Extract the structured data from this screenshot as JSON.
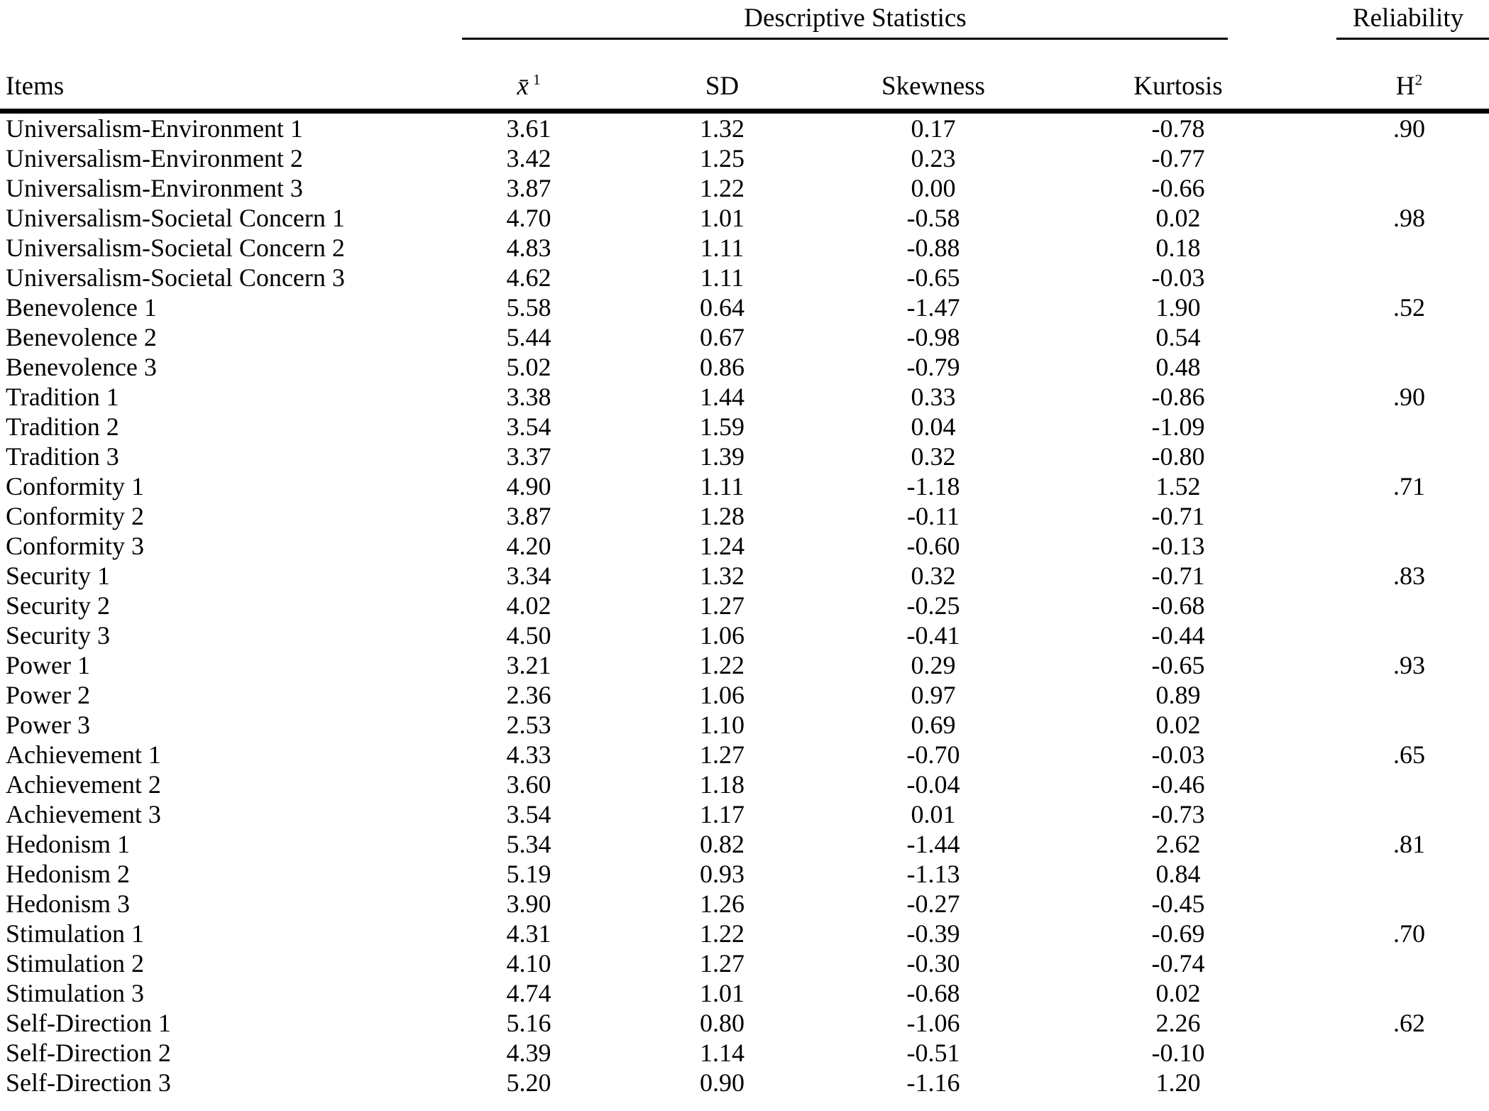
{
  "page": {
    "background": "#ffffff",
    "text_color": "#000000"
  },
  "table": {
    "group_headers": {
      "descriptive_statistics": "Descriptive Statistics",
      "reliability": "Reliability"
    },
    "columns": {
      "items": "Items",
      "mean_base": "x̄",
      "mean_sup": "1",
      "sd": "SD",
      "skewness": "Skewness",
      "kurtosis": "Kurtosis",
      "reliability_base": "H",
      "reliability_sup": "2"
    },
    "rows": [
      {
        "item": "Universalism-Environment 1",
        "mean": "3.61",
        "sd": "1.32",
        "skewness": "0.17",
        "kurtosis": "-0.78",
        "h2": ".90"
      },
      {
        "item": "Universalism-Environment 2",
        "mean": "3.42",
        "sd": "1.25",
        "skewness": "0.23",
        "kurtosis": "-0.77",
        "h2": ""
      },
      {
        "item": "Universalism-Environment 3",
        "mean": "3.87",
        "sd": "1.22",
        "skewness": "0.00",
        "kurtosis": "-0.66",
        "h2": ""
      },
      {
        "item": "Universalism-Societal Concern 1",
        "mean": "4.70",
        "sd": "1.01",
        "skewness": "-0.58",
        "kurtosis": "0.02",
        "h2": ".98"
      },
      {
        "item": "Universalism-Societal Concern 2",
        "mean": "4.83",
        "sd": "1.11",
        "skewness": "-0.88",
        "kurtosis": "0.18",
        "h2": ""
      },
      {
        "item": "Universalism-Societal Concern 3",
        "mean": "4.62",
        "sd": "1.11",
        "skewness": "-0.65",
        "kurtosis": "-0.03",
        "h2": ""
      },
      {
        "item": "Benevolence 1",
        "mean": "5.58",
        "sd": "0.64",
        "skewness": "-1.47",
        "kurtosis": "1.90",
        "h2": ".52"
      },
      {
        "item": "Benevolence 2",
        "mean": "5.44",
        "sd": "0.67",
        "skewness": "-0.98",
        "kurtosis": "0.54",
        "h2": ""
      },
      {
        "item": "Benevolence 3",
        "mean": "5.02",
        "sd": "0.86",
        "skewness": "-0.79",
        "kurtosis": "0.48",
        "h2": ""
      },
      {
        "item": "Tradition 1",
        "mean": "3.38",
        "sd": "1.44",
        "skewness": "0.33",
        "kurtosis": "-0.86",
        "h2": ".90"
      },
      {
        "item": "Tradition 2",
        "mean": "3.54",
        "sd": "1.59",
        "skewness": "0.04",
        "kurtosis": "-1.09",
        "h2": ""
      },
      {
        "item": "Tradition 3",
        "mean": "3.37",
        "sd": "1.39",
        "skewness": "0.32",
        "kurtosis": "-0.80",
        "h2": ""
      },
      {
        "item": "Conformity 1",
        "mean": "4.90",
        "sd": "1.11",
        "skewness": "-1.18",
        "kurtosis": "1.52",
        "h2": ".71"
      },
      {
        "item": "Conformity 2",
        "mean": "3.87",
        "sd": "1.28",
        "skewness": "-0.11",
        "kurtosis": "-0.71",
        "h2": ""
      },
      {
        "item": "Conformity 3",
        "mean": "4.20",
        "sd": "1.24",
        "skewness": "-0.60",
        "kurtosis": "-0.13",
        "h2": ""
      },
      {
        "item": "Security 1",
        "mean": "3.34",
        "sd": "1.32",
        "skewness": "0.32",
        "kurtosis": "-0.71",
        "h2": ".83"
      },
      {
        "item": "Security 2",
        "mean": "4.02",
        "sd": "1.27",
        "skewness": "-0.25",
        "kurtosis": "-0.68",
        "h2": ""
      },
      {
        "item": "Security 3",
        "mean": "4.50",
        "sd": "1.06",
        "skewness": "-0.41",
        "kurtosis": "-0.44",
        "h2": ""
      },
      {
        "item": "Power 1",
        "mean": "3.21",
        "sd": "1.22",
        "skewness": "0.29",
        "kurtosis": "-0.65",
        "h2": ".93"
      },
      {
        "item": "Power 2",
        "mean": "2.36",
        "sd": "1.06",
        "skewness": "0.97",
        "kurtosis": "0.89",
        "h2": ""
      },
      {
        "item": "Power 3",
        "mean": "2.53",
        "sd": "1.10",
        "skewness": "0.69",
        "kurtosis": "0.02",
        "h2": ""
      },
      {
        "item": "Achievement 1",
        "mean": "4.33",
        "sd": "1.27",
        "skewness": "-0.70",
        "kurtosis": "-0.03",
        "h2": ".65"
      },
      {
        "item": "Achievement 2",
        "mean": "3.60",
        "sd": "1.18",
        "skewness": "-0.04",
        "kurtosis": "-0.46",
        "h2": ""
      },
      {
        "item": "Achievement 3",
        "mean": "3.54",
        "sd": "1.17",
        "skewness": "0.01",
        "kurtosis": "-0.73",
        "h2": ""
      },
      {
        "item": "Hedonism 1",
        "mean": "5.34",
        "sd": "0.82",
        "skewness": "-1.44",
        "kurtosis": "2.62",
        "h2": ".81"
      },
      {
        "item": "Hedonism 2",
        "mean": "5.19",
        "sd": "0.93",
        "skewness": "-1.13",
        "kurtosis": "0.84",
        "h2": ""
      },
      {
        "item": "Hedonism 3",
        "mean": "3.90",
        "sd": "1.26",
        "skewness": "-0.27",
        "kurtosis": "-0.45",
        "h2": ""
      },
      {
        "item": "Stimulation 1",
        "mean": "4.31",
        "sd": "1.22",
        "skewness": "-0.39",
        "kurtosis": "-0.69",
        "h2": ".70"
      },
      {
        "item": "Stimulation 2",
        "mean": "4.10",
        "sd": "1.27",
        "skewness": "-0.30",
        "kurtosis": "-0.74",
        "h2": ""
      },
      {
        "item": "Stimulation 3",
        "mean": "4.74",
        "sd": "1.01",
        "skewness": "-0.68",
        "kurtosis": "0.02",
        "h2": ""
      },
      {
        "item": "Self-Direction 1",
        "mean": "5.16",
        "sd": "0.80",
        "skewness": "-1.06",
        "kurtosis": "2.26",
        "h2": ".62"
      },
      {
        "item": "Self-Direction 2",
        "mean": "4.39",
        "sd": "1.14",
        "skewness": "-0.51",
        "kurtosis": "-0.10",
        "h2": ""
      },
      {
        "item": "Self-Direction 3",
        "mean": "5.20",
        "sd": "0.90",
        "skewness": "-1.16",
        "kurtosis": "1.20",
        "h2": ""
      }
    ]
  }
}
